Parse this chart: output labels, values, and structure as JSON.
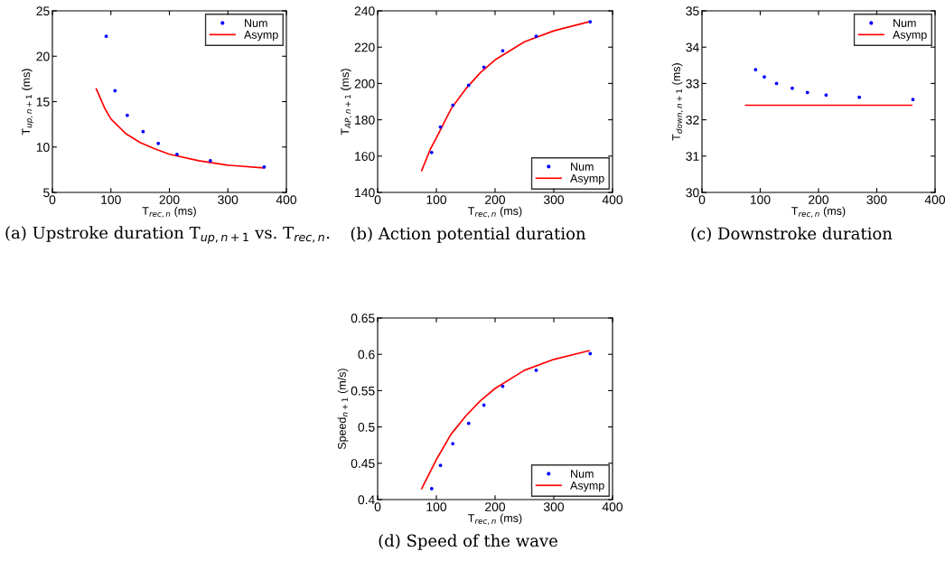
{
  "chart_data": [
    {
      "type": "scatter",
      "title": "(a) Upstroke duration T$_{up,n+1}$ vs. T$_{rec,n}$.",
      "xlabel": "T$_{rec,n}$ (ms)",
      "ylabel": "T$_{up,n+1}$ (ms)",
      "xlim": [
        0,
        400
      ],
      "xticks": [
        0,
        100,
        200,
        300,
        400
      ],
      "ylim": [
        5,
        25
      ],
      "yticks": [
        5,
        10,
        15,
        20,
        25
      ],
      "grid": false,
      "legend": "top right",
      "series": [
        {
          "name": "Num",
          "color": "#0000ff",
          "marker": "circle",
          "x": [
            92,
            107,
            128,
            155,
            181,
            213,
            270,
            362
          ],
          "values": [
            22.2,
            16.2,
            13.5,
            11.7,
            10.4,
            9.2,
            8.5,
            7.8
          ]
        },
        {
          "name": "Asymp",
          "type": "line",
          "color": "#ff0000",
          "marker": "none",
          "line_style": "solid",
          "x": [
            75,
            90,
            100,
            125,
            150,
            175,
            200,
            250,
            300,
            360
          ],
          "values": [
            16.4,
            14.2,
            13.1,
            11.5,
            10.5,
            9.8,
            9.2,
            8.5,
            8.0,
            7.7
          ]
        }
      ]
    },
    {
      "type": "scatter",
      "title": "(b) Action potential duration",
      "xlabel": "T$_{rec,n}$ (ms)",
      "ylabel": "T$_{AP,n+1}$ (ms)",
      "xlim": [
        0,
        400
      ],
      "xticks": [
        0,
        100,
        200,
        300,
        400
      ],
      "ylim": [
        140,
        240
      ],
      "yticks": [
        140,
        160,
        180,
        200,
        220,
        240
      ],
      "grid": false,
      "legend": "bottom right",
      "series": [
        {
          "name": "Num",
          "color": "#0000ff",
          "marker": "circle",
          "x": [
            92,
            107,
            128,
            155,
            181,
            213,
            270,
            362
          ],
          "values": [
            162,
            176,
            188,
            199,
            209,
            218,
            226,
            234
          ]
        },
        {
          "name": "Asymp",
          "type": "line",
          "color": "#ff0000",
          "marker": "none",
          "line_style": "solid",
          "x": [
            75,
            90,
            100,
            125,
            150,
            175,
            200,
            250,
            300,
            360
          ],
          "values": [
            152,
            164,
            170,
            186,
            197,
            206,
            213,
            223,
            229,
            234
          ]
        }
      ]
    },
    {
      "type": "scatter",
      "title": "(c) Downstroke duration",
      "xlabel": "T$_{rec,n}$ (ms)",
      "ylabel": "T$_{down,n+1}$ (ms)",
      "xlim": [
        0,
        400
      ],
      "xticks": [
        0,
        100,
        200,
        300,
        400
      ],
      "ylim": [
        30,
        35
      ],
      "yticks": [
        30,
        31,
        32,
        33,
        34,
        35
      ],
      "grid": false,
      "legend": "top right",
      "series": [
        {
          "name": "Num",
          "color": "#0000ff",
          "marker": "circle",
          "x": [
            92,
            107,
            128,
            155,
            181,
            213,
            270,
            362
          ],
          "values": [
            33.38,
            33.18,
            33.0,
            32.87,
            32.75,
            32.68,
            32.62,
            32.56
          ]
        },
        {
          "name": "Asymp",
          "type": "line",
          "color": "#ff0000",
          "marker": "none",
          "line_style": "solid",
          "x": [
            75,
            360
          ],
          "values": [
            32.4,
            32.4
          ]
        }
      ]
    },
    {
      "type": "scatter",
      "title": "(d) Speed of the wave",
      "xlabel": "T$_{rec,n}$ (ms)",
      "ylabel": "Speed$_{n+1}$ (m/s)",
      "xlim": [
        0,
        400
      ],
      "xticks": [
        0,
        100,
        200,
        300,
        400
      ],
      "ylim": [
        0.4,
        0.65
      ],
      "yticks": [
        {
          "value": 0.4,
          "label": "0.4"
        },
        0.45,
        {
          "value": 0.5,
          "label": "0.5"
        },
        0.55,
        {
          "value": 0.6,
          "label": "0.6"
        },
        0.65
      ],
      "grid": false,
      "legend": "bottom right",
      "series": [
        {
          "name": "Num",
          "color": "#0000ff",
          "marker": "circle",
          "x": [
            92,
            107,
            128,
            155,
            181,
            213,
            270,
            362
          ],
          "values": [
            0.415,
            0.447,
            0.477,
            0.505,
            0.53,
            0.556,
            0.578,
            0.601
          ]
        },
        {
          "name": "Asymp",
          "type": "line",
          "color": "#ff0000",
          "marker": "none",
          "line_style": "solid",
          "x": [
            75,
            100,
            125,
            150,
            175,
            200,
            250,
            300,
            360
          ],
          "values": [
            0.415,
            0.455,
            0.49,
            0.515,
            0.536,
            0.553,
            0.578,
            0.593,
            0.605
          ]
        }
      ]
    }
  ]
}
